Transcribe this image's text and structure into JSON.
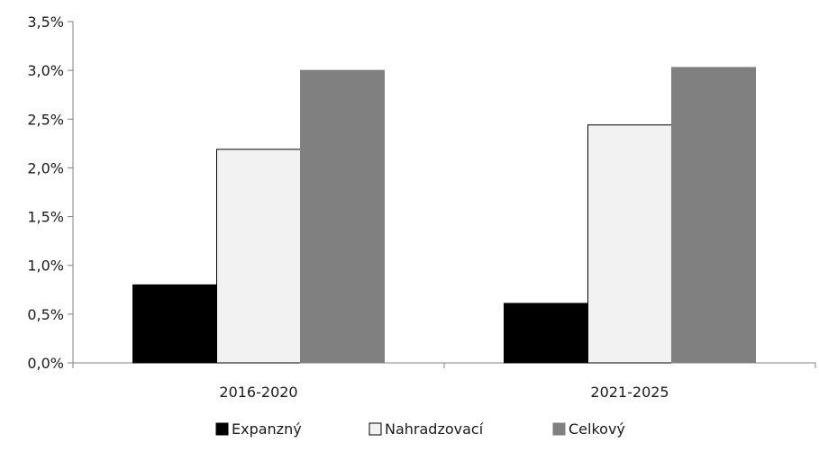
{
  "chart_data": {
    "type": "bar",
    "categories": [
      "2016-2020",
      "2021-2025"
    ],
    "series": [
      {
        "name": "Expanzný",
        "values": [
          0.8,
          0.61
        ],
        "color": "#000000"
      },
      {
        "name": "Nahradzovací",
        "values": [
          2.19,
          2.44
        ],
        "color": "#f2f2f2"
      },
      {
        "name": "Celkový",
        "values": [
          3.0,
          3.03
        ],
        "color": "#808080"
      }
    ],
    "y_ticks": [
      "0,0%",
      "0,5%",
      "1,0%",
      "1,5%",
      "2,0%",
      "2,5%",
      "3,0%",
      "3,5%"
    ],
    "ylim": [
      0,
      3.5
    ],
    "y_unit": "%",
    "grid": false,
    "legend_position": "bottom",
    "title": "",
    "xlabel": "",
    "ylabel": ""
  }
}
